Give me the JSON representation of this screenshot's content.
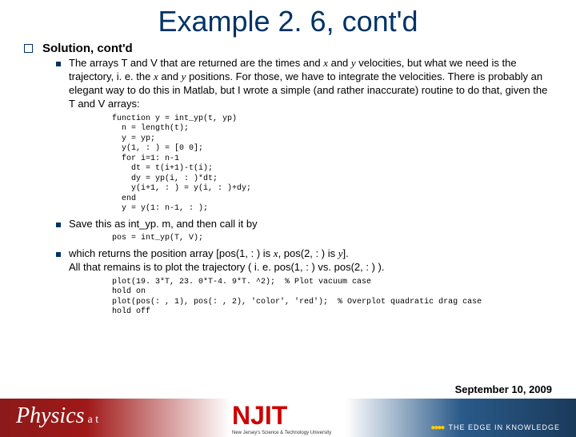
{
  "title": "Example 2. 6, cont'd",
  "bullet1": {
    "label": "Solution, cont'd"
  },
  "sub1": {
    "pre": "The arrays T and V that are returned are the times and ",
    "var1": "x",
    "mid1": " and ",
    "var2": "y",
    "mid2": " velocities, but what we need is the trajectory, i. e. the ",
    "var3": "x",
    "mid3": " and ",
    "var4": "y",
    "post": " positions.  For those, we have to integrate the velocities.  There is probably an elegant way to do this in Matlab, but I wrote a simple (and rather inaccurate) routine to do that, given the T and V arrays:"
  },
  "code1": "function y = int_yp(t, yp)\n  n = length(t);\n  y = yp;\n  y(1, : ) = [0 0];\n  for i=1: n-1\n    dt = t(i+1)-t(i);\n    dy = yp(i, : )*dt;\n    y(i+1, : ) = y(i, : )+dy;\n  end\n  y = y(1: n-1, : );",
  "sub2": {
    "text": "Save this as int_yp. m, and then call it by"
  },
  "code2": "pos = int_yp(T, V);",
  "sub3": {
    "pre": "which returns the position array [pos(1, : ) is ",
    "var1": "x",
    "mid1": ", pos(2, : ) is ",
    "var2": "y",
    "post1": "].",
    "line2": "All that remains is to plot the trajectory ( i. e. pos(1, : ) vs. pos(2, : ) )."
  },
  "code3": "plot(19. 3*T, 23. 0*T-4. 9*T. ^2);  % Plot vacuum case\nhold on\nplot(pos(: , 1), pos(: , 2), 'color', 'red');  % Overplot quadratic drag case\nhold off",
  "footer": {
    "physics": "Physics",
    "at": "a t",
    "njit": "NJIT",
    "tagline": "New Jersey's Science & Technology University",
    "edge": "THE EDGE IN KNOWLEDGE",
    "date": "September 10, 2009"
  }
}
